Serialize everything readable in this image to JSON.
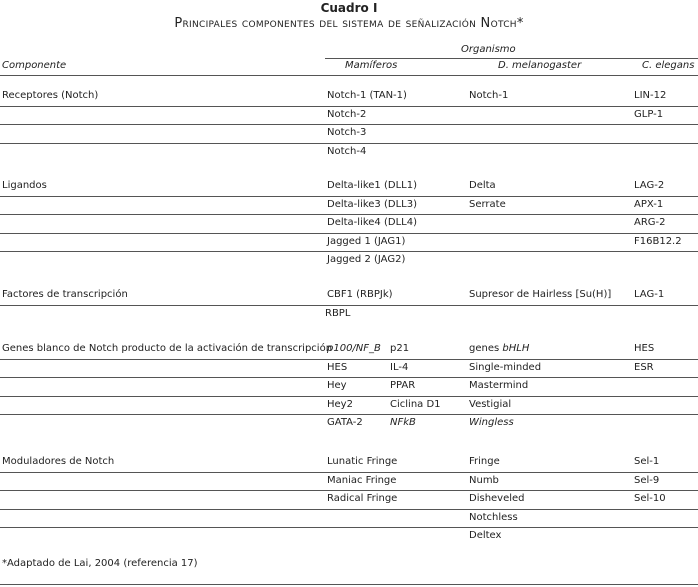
{
  "title": "Cuadro I",
  "subtitle": "Principales componentes del sistema de señalización Notch*",
  "headers": {
    "component": "Componente",
    "organism": "Organismo",
    "mammals": "Mamíferos",
    "drosophila": "D. melanogaster",
    "elegans": "C. elegans"
  },
  "groups": [
    {
      "label": "Receptores (Notch)",
      "rows": [
        {
          "m1": "Notch-1 (TAN-1)",
          "d": "Notch-1",
          "c": "LIN-12"
        },
        {
          "m1": "Notch-2",
          "c": "GLP-1"
        },
        {
          "m1": "Notch-3"
        },
        {
          "m1": "Notch-4"
        }
      ]
    },
    {
      "label": "Ligandos",
      "rows": [
        {
          "m1": "Delta-like1 (DLL1)",
          "d": "Delta",
          "c": "LAG-2"
        },
        {
          "m1": "Delta-like3 (DLL3)",
          "d": "Serrate",
          "c": "APX-1"
        },
        {
          "m1": "Delta-like4 (DLL4)",
          "c": "ARG-2"
        },
        {
          "m1": "Jagged 1 (JAG1)",
          "c": "F16B12.2"
        },
        {
          "m1": "Jagged 2 (JAG2)"
        }
      ]
    },
    {
      "label": "Factores de transcripción",
      "rows": [
        {
          "m1": "CBF1 (RBPJk)",
          "d": "Supresor de Hairless [Su(H)]",
          "c": "LAG-1"
        },
        {
          "m1": "RBPL",
          "shift": true
        }
      ]
    },
    {
      "label": "Genes blanco de Notch producto de la activación de transcripción",
      "rows": [
        {
          "m1": "p100/NF_B",
          "m1i": true,
          "m2": "p21",
          "d_pre": "genes ",
          "d": "bHLH",
          "di": true,
          "c": "HES"
        },
        {
          "m1": "HES",
          "m2": "IL-4",
          "d": "Single-minded",
          "c": "ESR"
        },
        {
          "m1": "Hey",
          "m2": "PPAR",
          "d": "Mastermind"
        },
        {
          "m1": "Hey2",
          "m2": "Ciclina D1",
          "d": "Vestigial"
        },
        {
          "m1": "GATA-2",
          "m2": "NFkB",
          "m2i": true,
          "d": "Wingless",
          "di": true
        }
      ]
    },
    {
      "label": "Moduladores de Notch",
      "rows": [
        {
          "m1": "Lunatic Fringe",
          "d": "Fringe",
          "c": "Sel-1"
        },
        {
          "m1": "Maniac Fringe",
          "d": "Numb",
          "c": "Sel-9"
        },
        {
          "m1": "Radical Fringe",
          "d": "Disheveled",
          "c": "Sel-10"
        },
        {
          "d": "Notchless"
        },
        {
          "d": "Deltex"
        }
      ]
    }
  ],
  "footnote": "*Adaptado de Lai, 2004 (referencia 17)"
}
